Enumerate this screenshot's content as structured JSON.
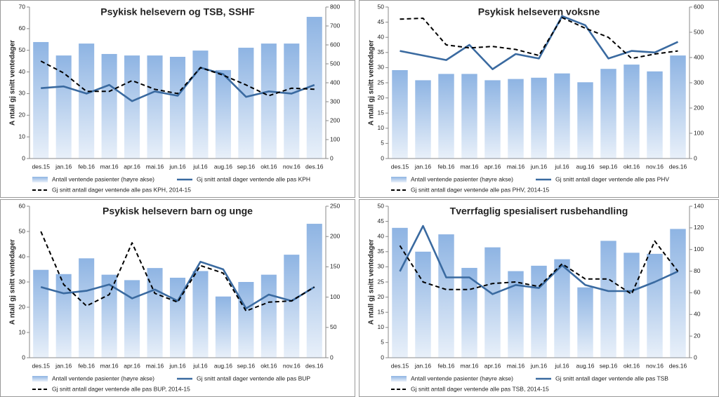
{
  "chart_data": [
    {
      "type": "combo",
      "title": "Psykisk helsevern og TSB, SSHF",
      "y_label": "A ntall gj snitt ventedager",
      "categories": [
        "des.15",
        "jan.16",
        "feb.16",
        "mar.16",
        "apr.16",
        "mai.16",
        "jun.16",
        "jul.16",
        "aug.16",
        "sep.16",
        "okt.16",
        "nov.16",
        "des.16"
      ],
      "ylim": [
        0,
        70
      ],
      "yticks": [
        0,
        10,
        20,
        30,
        40,
        50,
        60,
        70
      ],
      "y2lim": [
        0,
        800
      ],
      "y2ticks": [
        0,
        100,
        200,
        300,
        400,
        500,
        600,
        700,
        800
      ],
      "grid": false,
      "series": [
        {
          "name": "Antall ventende pasienter (høyre akse)",
          "kind": "bar",
          "axis": "y2",
          "color": "#8eb4e3",
          "values": [
            615,
            544,
            607,
            552,
            544,
            544,
            537,
            570,
            467,
            585,
            607,
            607,
            748
          ]
        },
        {
          "name": "Gj snitt antall dager ventende alle pas KPH",
          "kind": "line",
          "color": "#3a6aa0",
          "dashed": false,
          "values": [
            32.5,
            33.3,
            30,
            34,
            26.5,
            31,
            29,
            42,
            39,
            28.5,
            31,
            30,
            34
          ]
        },
        {
          "name": "Gj snitt antall dager ventende alle pas KPH, 2014-15",
          "kind": "line",
          "color": "#000000",
          "dashed": true,
          "values": [
            45,
            39.5,
            31,
            31,
            36,
            32,
            30,
            42,
            38.5,
            34,
            29,
            32.5,
            32
          ]
        }
      ]
    },
    {
      "type": "combo",
      "title": "Psykisk helsevern voksne",
      "y_label": "A ntall gj snitt ventedager",
      "categories": [
        "des.15",
        "jan.16",
        "feb.16",
        "mar.16",
        "apr.16",
        "mai.16",
        "jun.16",
        "jul.16",
        "aug.16",
        "sep.16",
        "okt.16",
        "nov.16",
        "des.16"
      ],
      "ylim": [
        0,
        50
      ],
      "yticks": [
        0,
        5,
        10,
        15,
        20,
        25,
        30,
        35,
        40,
        45,
        50
      ],
      "y2lim": [
        0,
        600
      ],
      "y2ticks": [
        0,
        100,
        200,
        300,
        400,
        500,
        600
      ],
      "grid": false,
      "series": [
        {
          "name": "Antall ventende pasienter (høyre akse)",
          "kind": "bar",
          "axis": "y2",
          "color": "#8eb4e3",
          "values": [
            350,
            310,
            335,
            335,
            310,
            315,
            320,
            337,
            302,
            355,
            372,
            345,
            408
          ]
        },
        {
          "name": "Gj snitt antall dager ventende alle pas PHV",
          "kind": "line",
          "color": "#3a6aa0",
          "dashed": false,
          "values": [
            35.5,
            34,
            32.5,
            37.5,
            29.5,
            34.5,
            33,
            47,
            44,
            33,
            35.5,
            35,
            38.5
          ]
        },
        {
          "name": "Gj snitt antall dager ventende alle pas PHV, 2014-15",
          "kind": "line",
          "color": "#000000",
          "dashed": true,
          "values": [
            46,
            46.3,
            37.5,
            36.5,
            37,
            36,
            34,
            46.5,
            43,
            40,
            33,
            34.5,
            35.5
          ]
        }
      ]
    },
    {
      "type": "combo",
      "title": "Psykisk helsevern barn og unge",
      "y_label": "A ntall gj snitt ventedager",
      "categories": [
        "des.15",
        "jan.16",
        "feb.16",
        "mar.16",
        "apr.16",
        "mai.16",
        "jun.16",
        "jul.16",
        "aug.16",
        "sep.16",
        "okt.16",
        "nov.16",
        "des.16"
      ],
      "ylim": [
        0,
        60
      ],
      "yticks": [
        0,
        10,
        20,
        30,
        40,
        50,
        60
      ],
      "y2lim": [
        0,
        250
      ],
      "y2ticks": [
        0,
        50,
        100,
        150,
        200,
        250
      ],
      "grid": false,
      "series": [
        {
          "name": "Antall ventende pasienter (høyre akse)",
          "kind": "bar",
          "axis": "y2",
          "color": "#8eb4e3",
          "values": [
            145,
            138,
            164,
            137,
            128,
            148,
            132,
            143,
            101,
            125,
            137,
            170,
            221
          ]
        },
        {
          "name": "Gj snitt antall dager ventende alle pas BUP",
          "kind": "line",
          "color": "#3a6aa0",
          "dashed": false,
          "values": [
            28,
            25.5,
            26.5,
            29,
            23.5,
            27,
            22.5,
            38,
            35,
            19.5,
            25,
            22.5,
            28
          ]
        },
        {
          "name": "Gj snitt antall dager ventende alle pas BUP, 2014-15",
          "kind": "line",
          "color": "#000000",
          "dashed": true,
          "values": [
            50,
            29,
            20.5,
            25,
            45.5,
            25.5,
            22,
            36.5,
            33.5,
            18.5,
            22,
            22.5,
            28
          ]
        }
      ]
    },
    {
      "type": "combo",
      "title": "Tverrfaglig spesialisert rusbehandling",
      "y_label": "A ntall gj snitt ventedager",
      "categories": [
        "des.15",
        "jan.16",
        "feb.16",
        "mar.16",
        "apr.16",
        "mai.16",
        "jun.16",
        "jul.16",
        "aug.16",
        "sep.16",
        "okt.16",
        "nov.16",
        "des.16"
      ],
      "ylim": [
        0,
        50
      ],
      "yticks": [
        0,
        5,
        10,
        15,
        20,
        25,
        30,
        35,
        40,
        45,
        50
      ],
      "y2lim": [
        0,
        140
      ],
      "y2ticks": [
        0,
        20,
        40,
        60,
        80,
        100,
        120,
        140
      ],
      "grid": false,
      "series": [
        {
          "name": "Antall ventende pasienter (høyre akse)",
          "kind": "bar",
          "axis": "y2",
          "color": "#8eb4e3",
          "values": [
            120,
            98,
            114,
            83,
            102,
            80,
            85,
            91,
            65,
            108,
            97,
            96,
            119
          ]
        },
        {
          "name": "Gj snitt antall dager ventende alle pas TSB",
          "kind": "line",
          "color": "#3a6aa0",
          "dashed": false,
          "values": [
            28.5,
            43.5,
            26.5,
            26.5,
            21,
            24,
            23,
            30.5,
            24,
            22,
            22,
            25,
            28.5
          ]
        },
        {
          "name": "Gj snitt antall dager ventende alle pas TSB, 2014-15",
          "kind": "line",
          "color": "#000000",
          "dashed": true,
          "values": [
            37,
            25,
            22.5,
            22.5,
            24.5,
            25,
            23.5,
            31,
            26,
            26,
            21,
            38.5,
            28.5
          ]
        }
      ]
    }
  ]
}
